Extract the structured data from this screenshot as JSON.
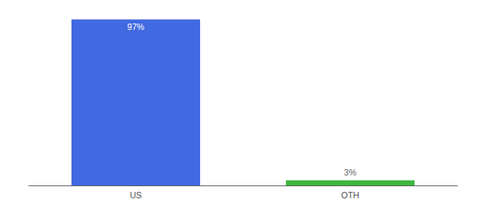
{
  "chart_data": {
    "type": "bar",
    "categories": [
      "US",
      "OTH"
    ],
    "values": [
      97,
      3
    ],
    "value_labels": [
      "97%",
      "3%"
    ],
    "data_labels": true,
    "colors": [
      "#4169E1",
      "#3CB83C"
    ],
    "ylim": [
      0,
      100
    ],
    "grid": false,
    "tick_labels": "x"
  }
}
